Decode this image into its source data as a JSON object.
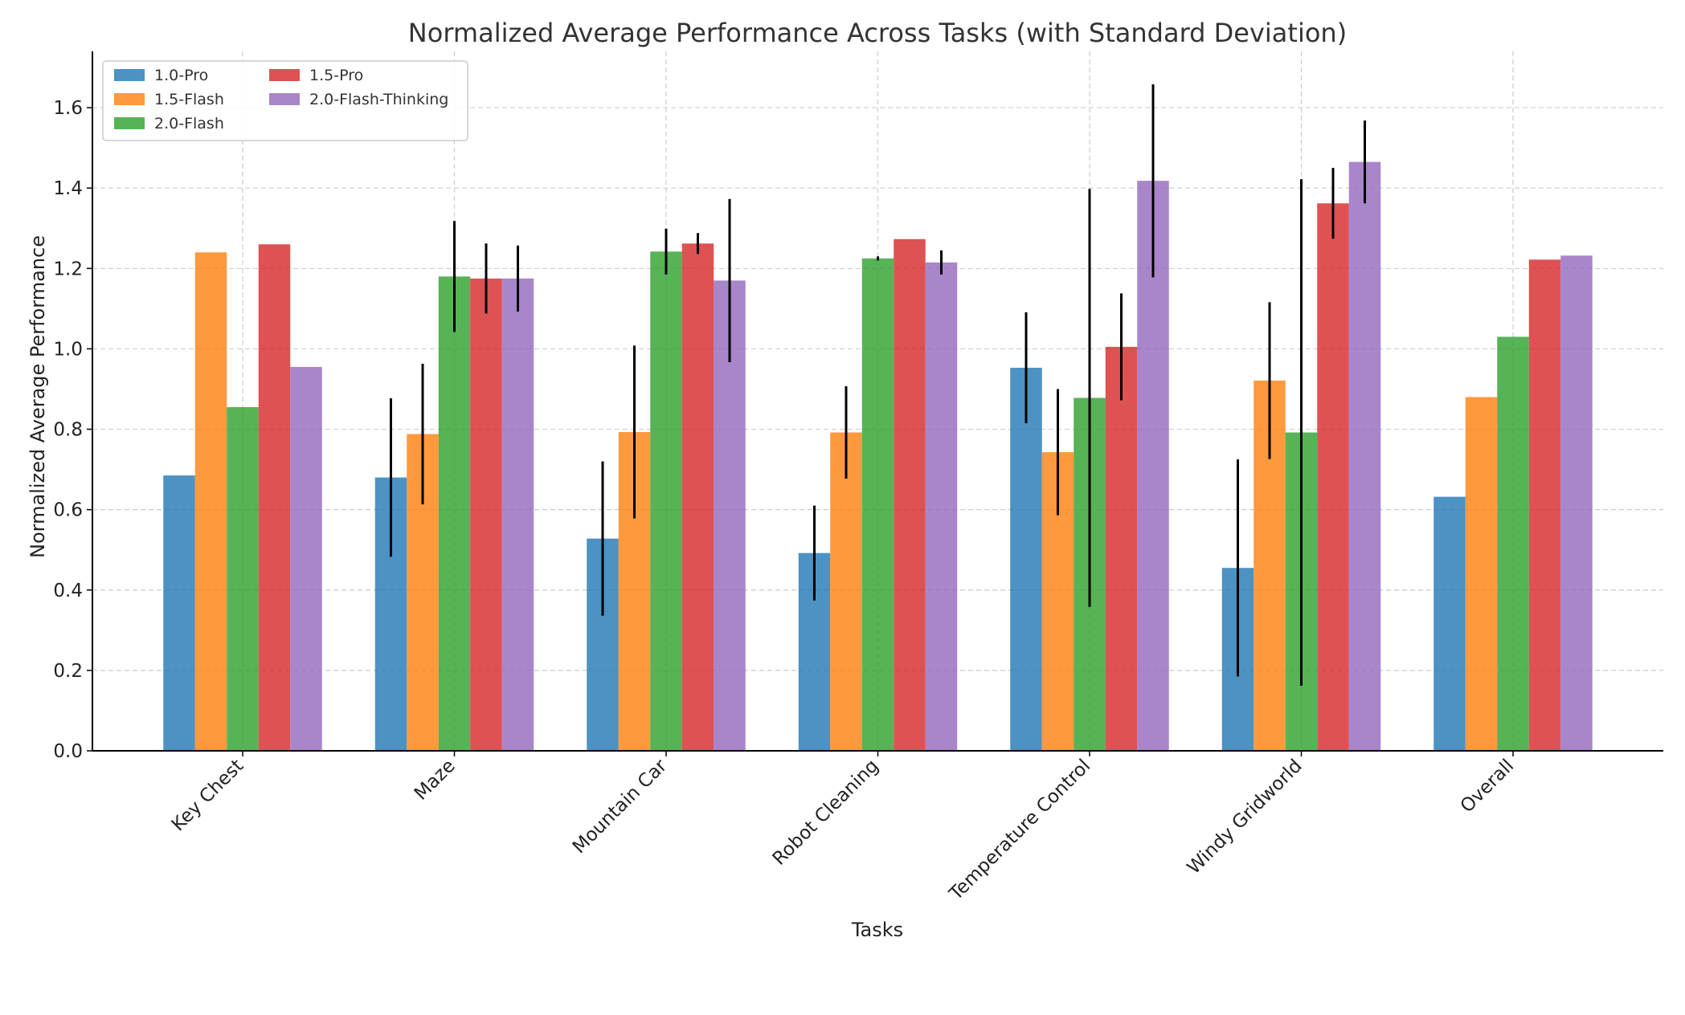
{
  "chart_data": {
    "type": "bar",
    "title": "Normalized Average Performance Across Tasks (with Standard Deviation)",
    "xlabel": "Tasks",
    "ylabel": "Normalized Average Performance",
    "ylim": [
      0,
      1.74
    ],
    "yticks": [
      0.0,
      0.2,
      0.4,
      0.6,
      0.8,
      1.0,
      1.2,
      1.4,
      1.6
    ],
    "grid": true,
    "legend_position": "top-left",
    "categories": [
      "Key Chest",
      "Maze",
      "Mountain Car",
      "Robot Cleaning",
      "Temperature Control",
      "Windy Gridworld",
      "Overall"
    ],
    "series": [
      {
        "name": "1.0-Pro",
        "color": "#1f77b4",
        "values": [
          0.685,
          0.68,
          0.528,
          0.492,
          0.953,
          0.455,
          0.632
        ],
        "errors": [
          null,
          0.197,
          0.192,
          0.118,
          0.138,
          0.27,
          null
        ]
      },
      {
        "name": "1.5-Flash",
        "color": "#ff7f0e",
        "values": [
          1.24,
          0.788,
          0.793,
          0.792,
          0.743,
          0.921,
          0.88
        ],
        "errors": [
          null,
          0.175,
          0.215,
          0.115,
          0.157,
          0.195,
          null
        ]
      },
      {
        "name": "2.0-Flash",
        "color": "#2ca02c",
        "values": [
          0.855,
          1.18,
          1.242,
          1.225,
          0.878,
          0.792,
          1.03
        ],
        "errors": [
          null,
          0.138,
          0.057,
          0.005,
          0.52,
          0.63,
          null
        ]
      },
      {
        "name": "1.5-Pro",
        "color": "#d62728",
        "values": [
          1.26,
          1.175,
          1.262,
          1.273,
          1.005,
          1.362,
          1.222
        ],
        "errors": [
          null,
          0.087,
          0.026,
          null,
          0.133,
          0.088,
          null
        ]
      },
      {
        "name": "2.0-Flash-Thinking",
        "color": "#9467bd",
        "values": [
          0.955,
          1.175,
          1.17,
          1.215,
          1.418,
          1.465,
          1.232
        ],
        "errors": [
          null,
          0.082,
          0.203,
          0.03,
          0.24,
          0.103,
          null
        ]
      }
    ]
  }
}
